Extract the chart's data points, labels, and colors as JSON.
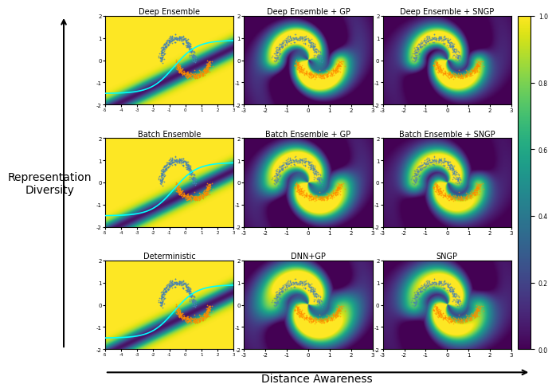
{
  "titles": [
    [
      "Deep Ensemble",
      "Deep Ensemble + GP",
      "Deep Ensemble + SNGP"
    ],
    [
      "Batch Ensemble",
      "Batch Ensemble + GP",
      "Batch Ensemble + SNGP"
    ],
    [
      "Deterministic",
      "DNN+GP",
      "SNGP"
    ]
  ],
  "xlabel": "Distance Awareness",
  "ylabel": "Representation\nDiversity",
  "colorbar_ticks": [
    0.0,
    0.2,
    0.4,
    0.6,
    0.8,
    1.0
  ],
  "xlim_left": [
    -5,
    3
  ],
  "ylim_left": [
    -2,
    2
  ],
  "xlim_right": [
    -3,
    3
  ],
  "ylim_right": [
    -2,
    2
  ],
  "background_color": "#ffffff",
  "title_fontsize": 7,
  "label_fontsize": 10,
  "tick_fontsize": 5
}
